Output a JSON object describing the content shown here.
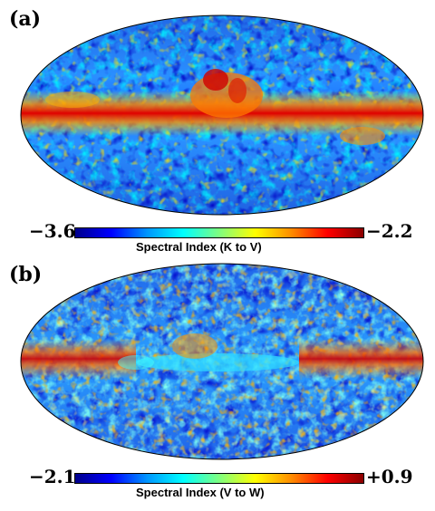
{
  "panels": [
    {
      "id": "a",
      "label": "(a)",
      "colorbar": {
        "min": "−3.6",
        "max": "−2.2",
        "title": "Spectral Index (K to V)"
      }
    },
    {
      "id": "b",
      "label": "(b)",
      "colorbar": {
        "min": "−2.1",
        "max": "+0.9",
        "title": "Spectral Index (V to W)"
      }
    }
  ],
  "colors": {
    "scale": [
      "#00008b",
      "#0000ff",
      "#0096ff",
      "#00ffff",
      "#7fff7f",
      "#ffff00",
      "#ff8c00",
      "#ff0000",
      "#8b0000"
    ],
    "outline": "#000000"
  }
}
